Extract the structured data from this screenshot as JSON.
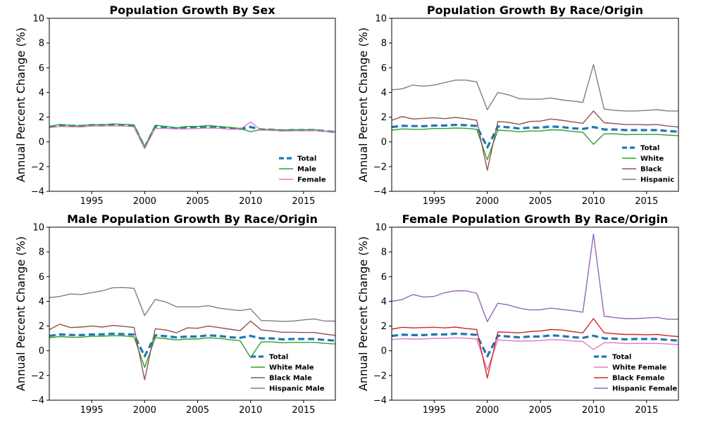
{
  "chart_data": [
    {
      "type": "line",
      "title": "Population Growth By Sex",
      "ylabel": "Annual Percent Change (%)",
      "xlabel": "",
      "x": [
        1991,
        1992,
        1993,
        1994,
        1995,
        1996,
        1997,
        1998,
        1999,
        2000,
        2001,
        2002,
        2003,
        2004,
        2005,
        2006,
        2007,
        2008,
        2009,
        2010,
        2011,
        2012,
        2013,
        2014,
        2015,
        2016,
        2017,
        2018
      ],
      "xlim": [
        1991,
        2018
      ],
      "ylim": [
        -4,
        10
      ],
      "xticks": [
        "1995",
        "2000",
        "2005",
        "2010",
        "2015"
      ],
      "yticks": [
        "−4",
        "−2",
        "0",
        "2",
        "4",
        "6",
        "8",
        "10"
      ],
      "legend_position": "bottom-right",
      "series": [
        {
          "name": "Total",
          "color": "#1f77b4",
          "style": "dashed",
          "values": [
            1.2,
            1.35,
            1.3,
            1.28,
            1.35,
            1.35,
            1.38,
            1.35,
            1.3,
            -0.45,
            1.25,
            1.2,
            1.1,
            1.2,
            1.2,
            1.25,
            1.2,
            1.1,
            1.05,
            1.2,
            1.0,
            0.98,
            0.92,
            0.95,
            0.95,
            0.95,
            0.88,
            0.8
          ]
        },
        {
          "name": "Male",
          "color": "#2ca02c",
          "style": "solid",
          "values": [
            1.25,
            1.42,
            1.33,
            1.3,
            1.4,
            1.38,
            1.45,
            1.42,
            1.38,
            -0.4,
            1.35,
            1.25,
            1.12,
            1.25,
            1.25,
            1.32,
            1.25,
            1.18,
            1.08,
            0.82,
            1.0,
            1.0,
            0.95,
            0.98,
            0.98,
            0.98,
            0.88,
            0.82
          ]
        },
        {
          "name": "Female",
          "color": "#e377c2",
          "style": "solid",
          "values": [
            1.15,
            1.25,
            1.22,
            1.2,
            1.28,
            1.28,
            1.3,
            1.28,
            1.22,
            -0.55,
            1.1,
            1.08,
            1.05,
            1.05,
            1.08,
            1.12,
            1.1,
            1.02,
            1.02,
            1.6,
            0.95,
            0.95,
            0.88,
            0.9,
            0.9,
            0.92,
            0.85,
            0.78
          ]
        }
      ]
    },
    {
      "type": "line",
      "title": "Population Growth By Race/Origin",
      "ylabel": "Annual Percent Change (%)",
      "xlabel": "",
      "x": [
        1991,
        1992,
        1993,
        1994,
        1995,
        1996,
        1997,
        1998,
        1999,
        2000,
        2001,
        2002,
        2003,
        2004,
        2005,
        2006,
        2007,
        2008,
        2009,
        2010,
        2011,
        2012,
        2013,
        2014,
        2015,
        2016,
        2017,
        2018
      ],
      "xlim": [
        1991,
        2018
      ],
      "ylim": [
        -4,
        10
      ],
      "xticks": [
        "1995",
        "2000",
        "2005",
        "2010",
        "2015"
      ],
      "yticks": [
        "−4",
        "−2",
        "0",
        "2",
        "4",
        "6",
        "8",
        "10"
      ],
      "legend_position": "bottom-right",
      "series": [
        {
          "name": "Total",
          "color": "#1f77b4",
          "style": "dashed",
          "values": [
            1.2,
            1.3,
            1.28,
            1.27,
            1.32,
            1.32,
            1.38,
            1.35,
            1.28,
            -0.45,
            1.25,
            1.18,
            1.08,
            1.15,
            1.15,
            1.25,
            1.2,
            1.1,
            1.05,
            1.2,
            1.0,
            1.0,
            0.95,
            0.95,
            0.95,
            0.95,
            0.88,
            0.82
          ]
        },
        {
          "name": "White",
          "color": "#2ca02c",
          "style": "solid",
          "values": [
            0.95,
            1.05,
            1.02,
            1.02,
            1.08,
            1.08,
            1.12,
            1.1,
            1.02,
            -1.45,
            0.95,
            0.9,
            0.82,
            0.88,
            0.88,
            0.98,
            0.95,
            0.85,
            0.78,
            -0.2,
            0.65,
            0.65,
            0.58,
            0.6,
            0.6,
            0.6,
            0.55,
            0.5
          ]
        },
        {
          "name": "Black",
          "color": "#8c564b",
          "style": "solid",
          "values": [
            1.75,
            2.05,
            1.85,
            1.9,
            1.95,
            1.88,
            1.98,
            1.88,
            1.75,
            -2.3,
            1.65,
            1.58,
            1.42,
            1.65,
            1.68,
            1.85,
            1.75,
            1.62,
            1.5,
            2.5,
            1.55,
            1.48,
            1.4,
            1.4,
            1.38,
            1.4,
            1.28,
            1.2
          ]
        },
        {
          "name": "Hispanic",
          "color": "#7f7f7f",
          "style": "solid",
          "values": [
            4.2,
            4.3,
            4.6,
            4.5,
            4.6,
            4.8,
            5.0,
            5.0,
            4.85,
            2.6,
            4.0,
            3.8,
            3.5,
            3.45,
            3.45,
            3.55,
            3.4,
            3.3,
            3.2,
            6.25,
            2.65,
            2.55,
            2.5,
            2.5,
            2.55,
            2.6,
            2.5,
            2.5
          ]
        }
      ]
    },
    {
      "type": "line",
      "title": "Male Population Growth By Race/Origin",
      "ylabel": "Annual Percent Change (%)",
      "xlabel": "",
      "x": [
        1991,
        1992,
        1993,
        1994,
        1995,
        1996,
        1997,
        1998,
        1999,
        2000,
        2001,
        2002,
        2003,
        2004,
        2005,
        2006,
        2007,
        2008,
        2009,
        2010,
        2011,
        2012,
        2013,
        2014,
        2015,
        2016,
        2017,
        2018
      ],
      "xlim": [
        1991,
        2018
      ],
      "ylim": [
        -4,
        10
      ],
      "xticks": [
        "1995",
        "2000",
        "2005",
        "2010",
        "2015"
      ],
      "yticks": [
        "−4",
        "−2",
        "0",
        "2",
        "4",
        "6",
        "8",
        "10"
      ],
      "legend_position": "bottom-right",
      "series": [
        {
          "name": "Total",
          "color": "#1f77b4",
          "style": "dashed",
          "values": [
            1.2,
            1.32,
            1.28,
            1.27,
            1.32,
            1.33,
            1.38,
            1.35,
            1.3,
            -0.45,
            1.25,
            1.18,
            1.08,
            1.15,
            1.15,
            1.25,
            1.2,
            1.1,
            1.05,
            1.2,
            1.0,
            1.0,
            0.92,
            0.95,
            0.95,
            0.95,
            0.88,
            0.82
          ]
        },
        {
          "name": "White Male",
          "color": "#2ca02c",
          "style": "solid",
          "values": [
            1.05,
            1.15,
            1.1,
            1.1,
            1.18,
            1.18,
            1.22,
            1.2,
            1.12,
            -1.35,
            1.05,
            0.98,
            0.88,
            0.95,
            0.95,
            1.05,
            1.0,
            0.9,
            0.82,
            -0.55,
            0.72,
            0.72,
            0.65,
            0.68,
            0.68,
            0.68,
            0.6,
            0.55
          ]
        },
        {
          "name": "Black Male",
          "color": "#8c564b",
          "style": "solid",
          "values": [
            1.7,
            2.15,
            1.88,
            1.92,
            2.0,
            1.92,
            2.05,
            1.98,
            1.88,
            -2.35,
            1.78,
            1.68,
            1.45,
            1.85,
            1.82,
            2.0,
            1.88,
            1.75,
            1.62,
            2.4,
            1.68,
            1.6,
            1.5,
            1.5,
            1.48,
            1.48,
            1.35,
            1.25
          ]
        },
        {
          "name": "Hispanic Male",
          "color": "#7f7f7f",
          "style": "solid",
          "values": [
            4.3,
            4.4,
            4.6,
            4.55,
            4.7,
            4.85,
            5.1,
            5.12,
            5.05,
            2.85,
            4.15,
            3.95,
            3.55,
            3.55,
            3.55,
            3.65,
            3.45,
            3.35,
            3.25,
            3.38,
            2.45,
            2.42,
            2.38,
            2.4,
            2.5,
            2.58,
            2.4,
            2.4
          ]
        }
      ]
    },
    {
      "type": "line",
      "title": "Female Population Growth By Race/Origin",
      "ylabel": "Annual Percent Change (%)",
      "xlabel": "",
      "x": [
        1991,
        1992,
        1993,
        1994,
        1995,
        1996,
        1997,
        1998,
        1999,
        2000,
        2001,
        2002,
        2003,
        2004,
        2005,
        2006,
        2007,
        2008,
        2009,
        2010,
        2011,
        2012,
        2013,
        2014,
        2015,
        2016,
        2017,
        2018
      ],
      "xlim": [
        1991,
        2018
      ],
      "ylim": [
        -4,
        10
      ],
      "xticks": [
        "1995",
        "2000",
        "2005",
        "2010",
        "2015"
      ],
      "yticks": [
        "−4",
        "−2",
        "0",
        "2",
        "4",
        "6",
        "8",
        "10"
      ],
      "legend_position": "bottom-right",
      "series": [
        {
          "name": "Total",
          "color": "#1f77b4",
          "style": "dashed",
          "values": [
            1.2,
            1.3,
            1.27,
            1.27,
            1.32,
            1.32,
            1.38,
            1.35,
            1.28,
            -0.45,
            1.22,
            1.15,
            1.08,
            1.15,
            1.15,
            1.25,
            1.2,
            1.1,
            1.05,
            1.22,
            1.0,
            0.98,
            0.92,
            0.95,
            0.95,
            0.95,
            0.88,
            0.82
          ]
        },
        {
          "name": "White Female",
          "color": "#e377c2",
          "style": "solid",
          "values": [
            0.9,
            0.98,
            0.95,
            0.95,
            1.0,
            1.0,
            1.05,
            1.02,
            0.95,
            -1.55,
            0.88,
            0.82,
            0.78,
            0.8,
            0.82,
            0.9,
            0.88,
            0.8,
            0.75,
            0.1,
            0.65,
            0.65,
            0.58,
            0.6,
            0.6,
            0.6,
            0.55,
            0.5
          ]
        },
        {
          "name": "Black Female",
          "color": "#d62728",
          "style": "solid",
          "values": [
            1.75,
            1.9,
            1.85,
            1.88,
            1.9,
            1.85,
            1.92,
            1.8,
            1.72,
            -2.2,
            1.52,
            1.5,
            1.45,
            1.55,
            1.6,
            1.72,
            1.68,
            1.55,
            1.45,
            2.6,
            1.45,
            1.38,
            1.32,
            1.32,
            1.3,
            1.32,
            1.22,
            1.15
          ]
        },
        {
          "name": "Hispanic Female",
          "color": "#9467bd",
          "style": "solid",
          "values": [
            4.0,
            4.15,
            4.55,
            4.35,
            4.4,
            4.7,
            4.85,
            4.85,
            4.65,
            2.35,
            3.85,
            3.7,
            3.45,
            3.3,
            3.32,
            3.45,
            3.35,
            3.25,
            3.12,
            9.45,
            2.8,
            2.68,
            2.6,
            2.6,
            2.65,
            2.7,
            2.55,
            2.55
          ]
        }
      ]
    }
  ]
}
